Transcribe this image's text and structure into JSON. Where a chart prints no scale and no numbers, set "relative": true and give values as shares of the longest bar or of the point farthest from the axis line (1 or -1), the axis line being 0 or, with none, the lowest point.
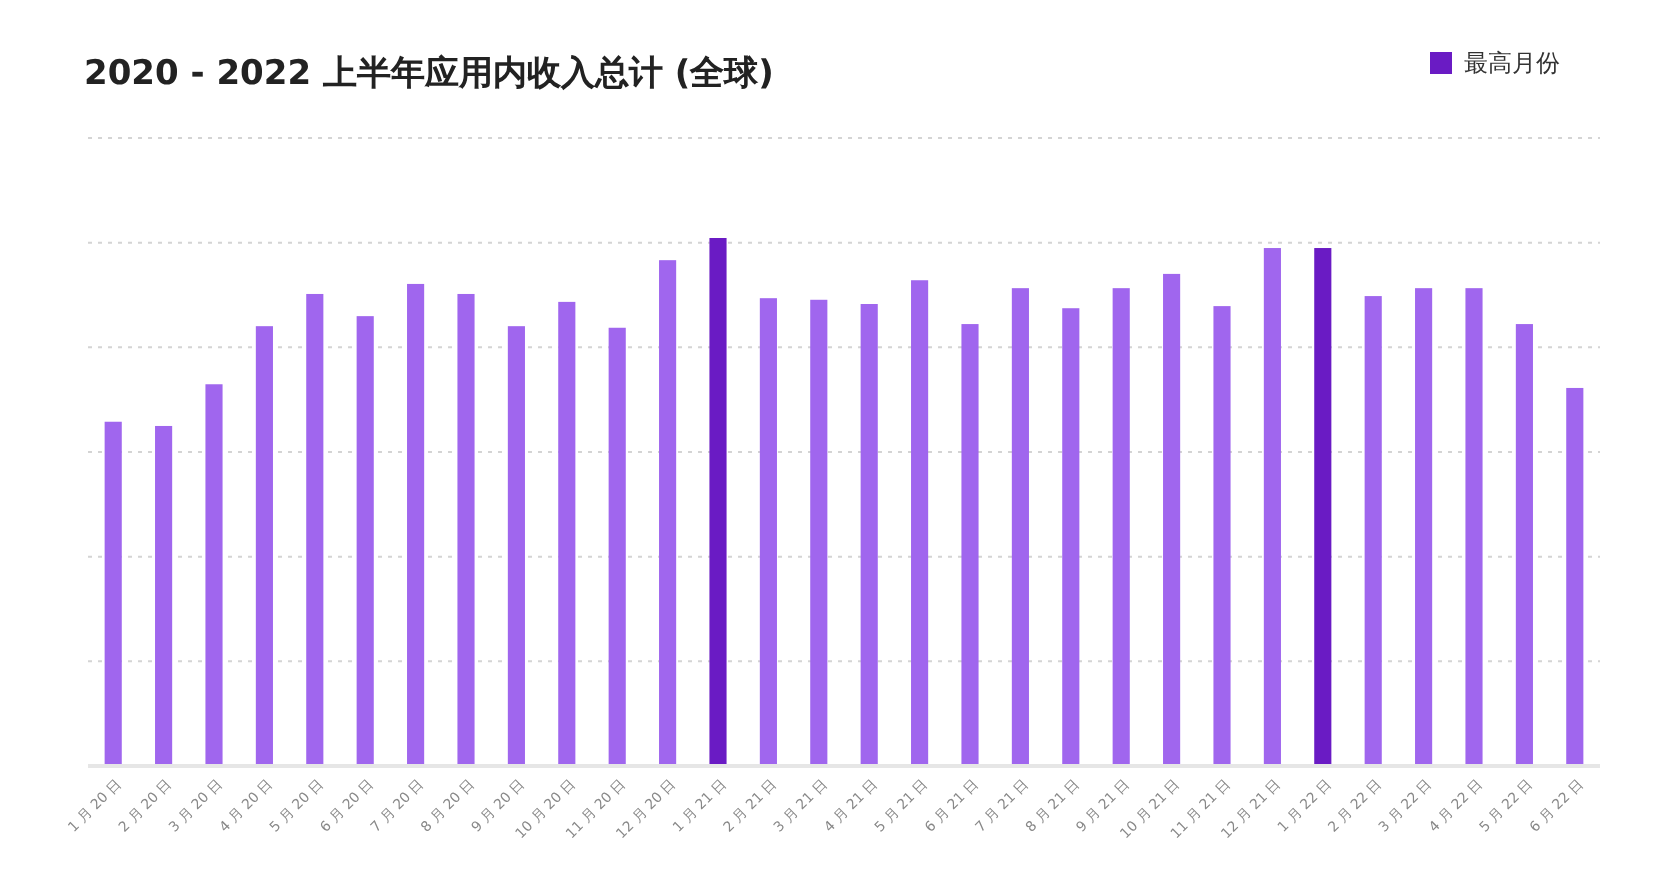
{
  "chart_data": {
    "type": "bar",
    "title": "2020 - 2022 上半年应用内收入总计 (全球)",
    "relative": true,
    "stacked": true,
    "grid": "y",
    "legend": "top right",
    "categories": [
      "1 月 20 日",
      "2 月 20 日",
      "3 月 20 日",
      "4 月 20 日",
      "5 月 20 日",
      "6 月 20 日",
      "7 月 20 日",
      "8 月 20 日",
      "9 月 20 日",
      "10 月 20 日",
      "11 月 20 日",
      "12 月 20 日",
      "1 月 21 日",
      "2 月 21 日",
      "3 月 21 日",
      "4 月 21 日",
      "5 月 21 日",
      "6 月 21 日",
      "7 月 21 日",
      "8 月 21 日",
      "9 月 21 日",
      "10 月 21 日",
      "11 月 21 日",
      "12 月 21 日",
      "1 月 22 日",
      "2 月 22 日",
      "3 月 22 日",
      "4 月 22 日",
      "5 月 22 日",
      "6 月 22 日"
    ],
    "series": [
      {
        "color": "#a066ee",
        "values": [
          0.652,
          0.644,
          0.723,
          0.833,
          0.894,
          0.852,
          0.913,
          0.894,
          0.833,
          0.879,
          0.83,
          0.958,
          null,
          0.886,
          0.883,
          0.875,
          0.92,
          0.837,
          0.905,
          0.867,
          0.905,
          0.932,
          0.871,
          0.981,
          null,
          0.89,
          0.905,
          0.905,
          0.837,
          0.716
        ]
      },
      {
        "name": "最高月份",
        "color": "#6a1bc4",
        "values": [
          null,
          null,
          null,
          null,
          null,
          null,
          null,
          null,
          null,
          null,
          null,
          null,
          1,
          null,
          null,
          null,
          null,
          null,
          null,
          null,
          null,
          null,
          null,
          null,
          0.981,
          null,
          null,
          null,
          null,
          null
        ]
      }
    ]
  }
}
